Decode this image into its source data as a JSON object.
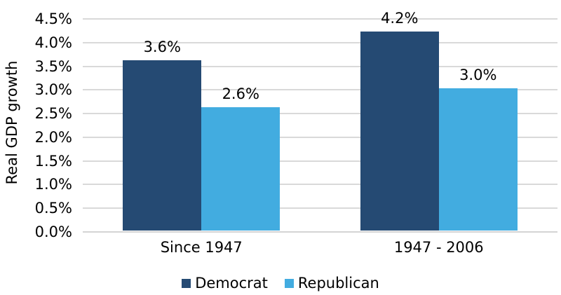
{
  "chart_data": {
    "type": "bar",
    "title": "",
    "ylabel": "Real GDP growth",
    "xlabel": "",
    "categories": [
      "Since 1947",
      "1947 - 2006"
    ],
    "series": [
      {
        "name": "Democrat",
        "color": "#254A73",
        "values": [
          3.6,
          4.2
        ],
        "value_labels": [
          "3.6%",
          "4.2%"
        ]
      },
      {
        "name": "Republican",
        "color": "#42ACE0",
        "values": [
          2.6,
          3.0
        ],
        "value_labels": [
          "2.6%",
          "3.0%"
        ]
      }
    ],
    "ylim": [
      0,
      4.5
    ],
    "yticks": [
      {
        "value": 4.5,
        "label": "4.5%"
      },
      {
        "value": 4.0,
        "label": "4.0%"
      },
      {
        "value": 3.5,
        "label": "3.5%"
      },
      {
        "value": 3.0,
        "label": "3.0%"
      },
      {
        "value": 2.5,
        "label": "2.5%"
      },
      {
        "value": 2.0,
        "label": "2.0%"
      },
      {
        "value": 1.5,
        "label": "1.5%"
      },
      {
        "value": 1.0,
        "label": "1.0%"
      },
      {
        "value": 0.5,
        "label": "0.5%"
      },
      {
        "value": 0.0,
        "label": "0.0%"
      }
    ],
    "grid": true,
    "legend_position": "bottom",
    "colors": {
      "gridline": "#D9D9D9",
      "axis_line": "#D4D4D4",
      "text": "#000000",
      "background": "#FFFFFF"
    }
  }
}
